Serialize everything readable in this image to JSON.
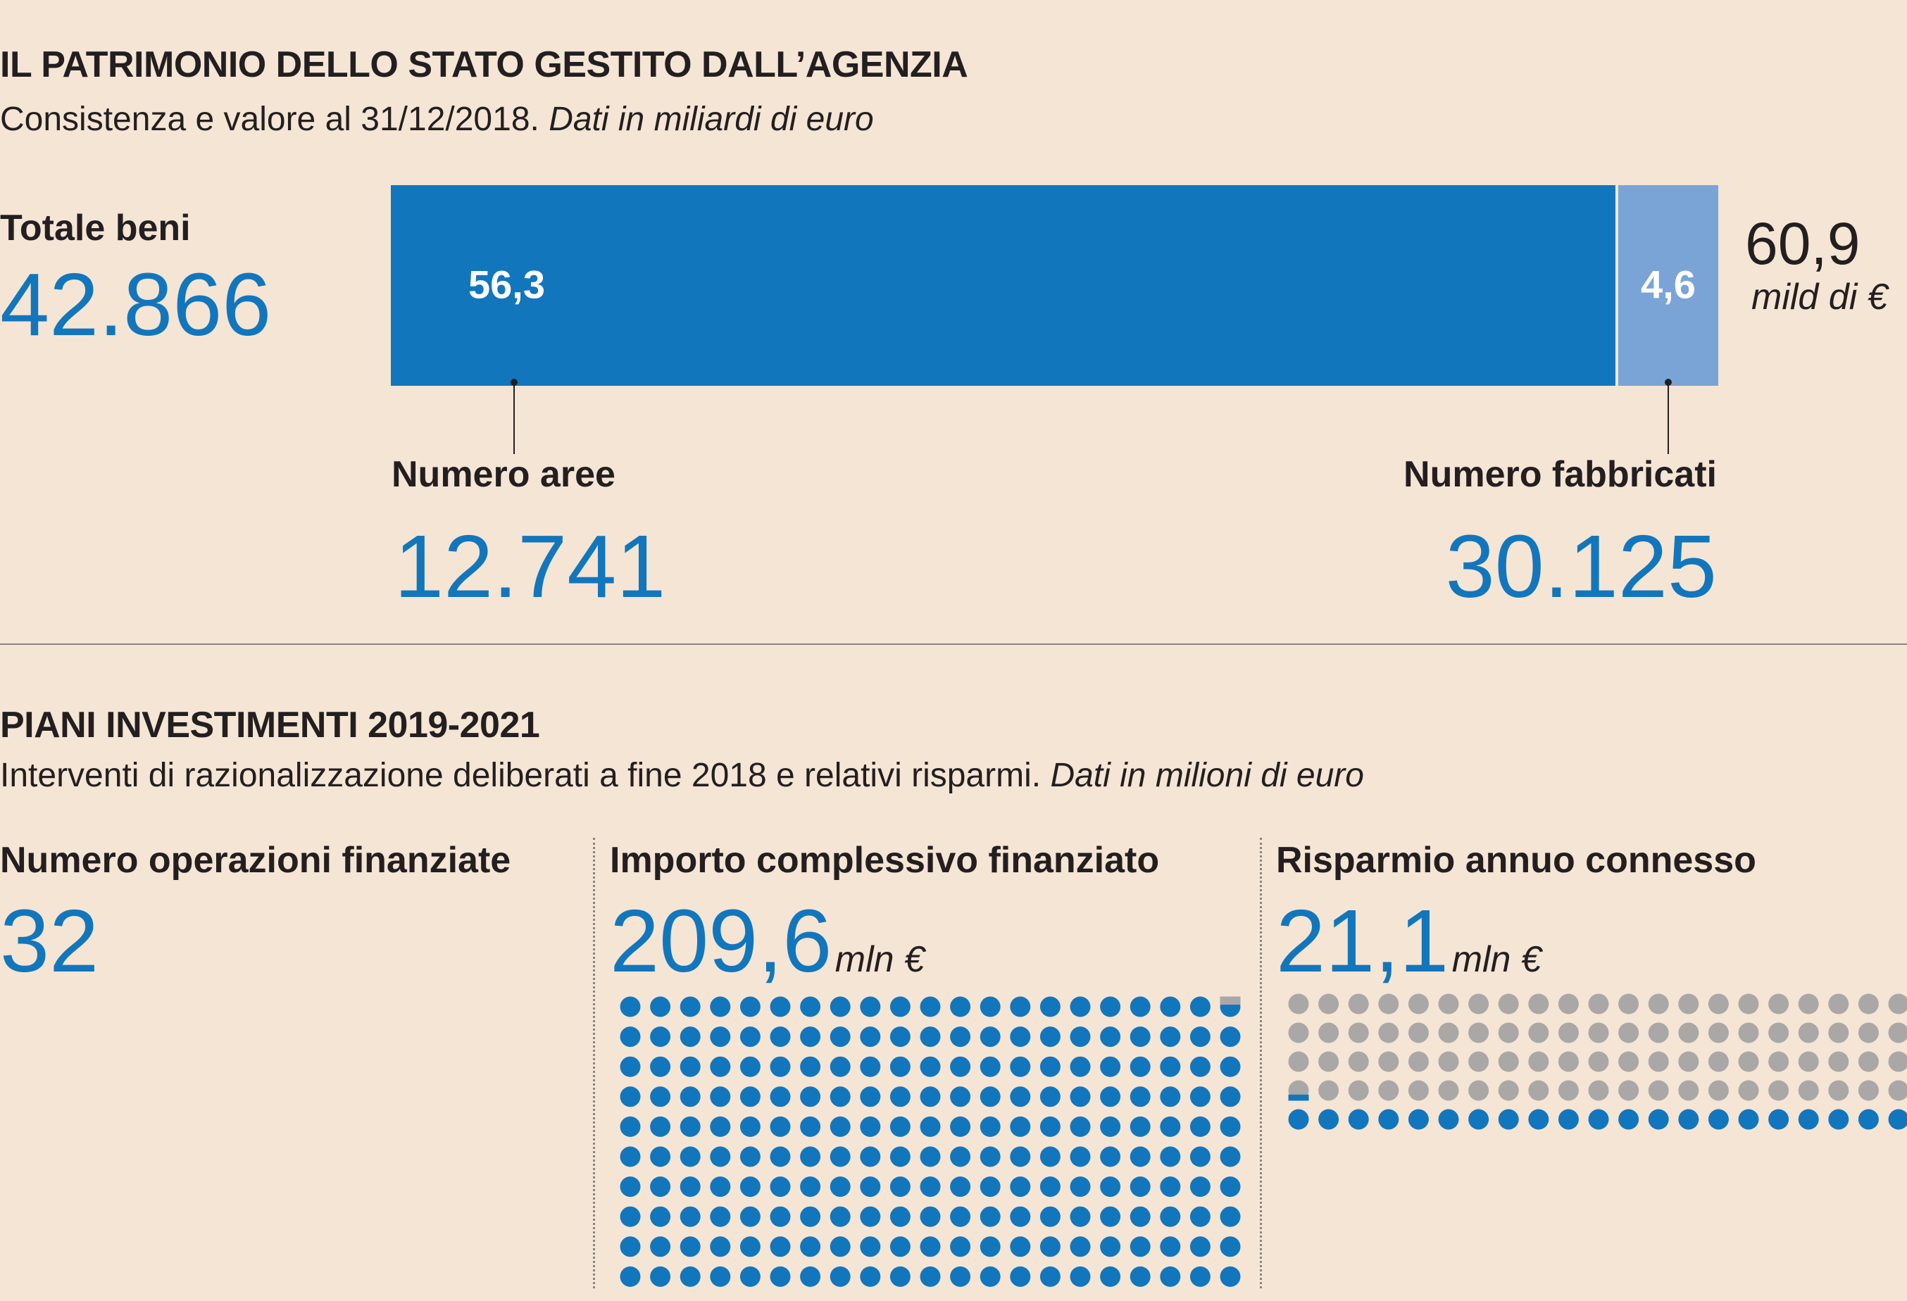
{
  "section1": {
    "title": "IL PATRIMONIO DELLO STATO GESTITO DALL’AGENZIA",
    "subtitle": "Consistenza e valore al 31/12/2018.",
    "subtitle_note": "Dati in miliardi di euro",
    "totale_label": "Totale beni",
    "totale_value": "42.866",
    "total_value_label": "60,9",
    "total_unit_label": "mild di €",
    "aree_label": "Numero aree",
    "aree_value": "12.741",
    "fabbricati_label": "Numero fabbricati",
    "fabbricati_value": "30.125"
  },
  "section2": {
    "title": "PIANI INVESTIMENTI 2019-2021",
    "subtitle": "Interventi di razionalizzazione deliberati a fine 2018 e relativi risparmi.",
    "subtitle_note": "Dati in milioni di euro",
    "col1_label": "Numero operazioni finanziate",
    "col1_value": "32",
    "col2_label": "Importo complessivo finanziato",
    "col2_value": "209,6",
    "col2_unit": "mln €",
    "col3_label": "Risparmio annuo connesso",
    "col3_value": "21,1",
    "col3_unit": "mln €"
  },
  "colors": {
    "background": "#f5e5d5",
    "primary_blue": "#1276bd",
    "light_blue": "#7ba4d6",
    "grey_dot": "#aaa8a6",
    "text": "#231f20"
  },
  "chart_data": [
    {
      "type": "bar",
      "orientation": "horizontal-stacked",
      "categories": [
        "Aree",
        "Fabbricati"
      ],
      "values": [
        56.3,
        4.6
      ],
      "value_labels": [
        "56,3",
        "4,6"
      ],
      "total": 60.9,
      "colors": [
        "#1276bd",
        "#7ba4d6"
      ]
    },
    {
      "type": "dot-matrix",
      "description_values": {
        "importo_mln": 209.6,
        "risparmio_mln": 21.1,
        "ratio_risparmio_importo": 0.1007
      }
    }
  ]
}
